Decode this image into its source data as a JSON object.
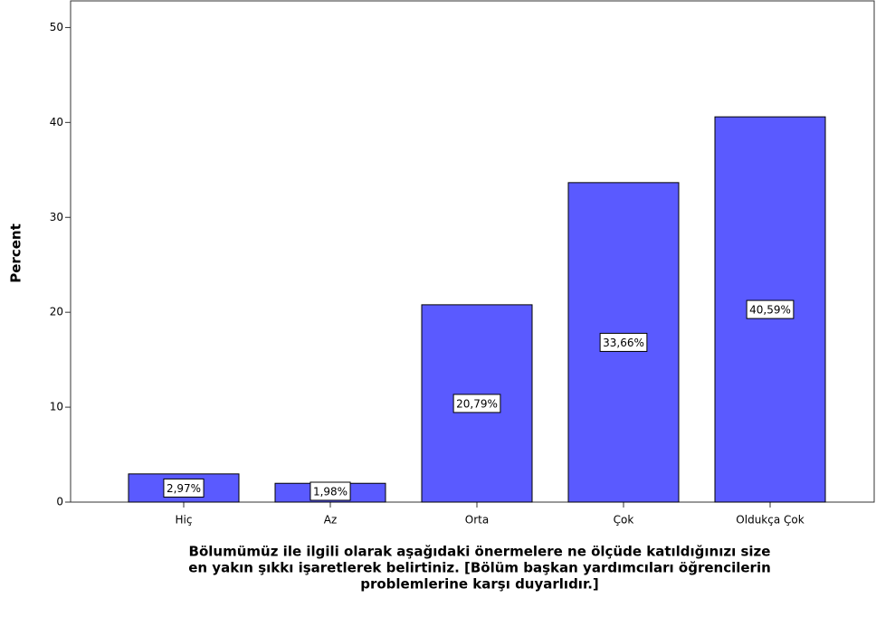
{
  "chart_data": {
    "type": "bar",
    "y_label": "Percent",
    "x_label": [
      "Bölumümüz ile ilgili olarak aşağıdaki önermelere ne ölçüde katıldığınızı size",
      "en yakın şıkkı işaretlerek belirtiniz. [Bölüm başkan yardımcıları öğrencilerin",
      "problemlerine karşı duyarlıdır.]"
    ],
    "categories": [
      "Hiç",
      "Az",
      "Orta",
      "Çok",
      "Oldukça Çok"
    ],
    "values": [
      2.97,
      1.98,
      20.79,
      33.66,
      40.59
    ],
    "value_labels": [
      "2,97%",
      "1,98%",
      "20,79%",
      "33,66%",
      "40,59%"
    ],
    "color": "#5a5aff",
    "ylim": [
      0,
      52.9
    ],
    "yticks": [
      0,
      10,
      20,
      30,
      40,
      50
    ]
  }
}
